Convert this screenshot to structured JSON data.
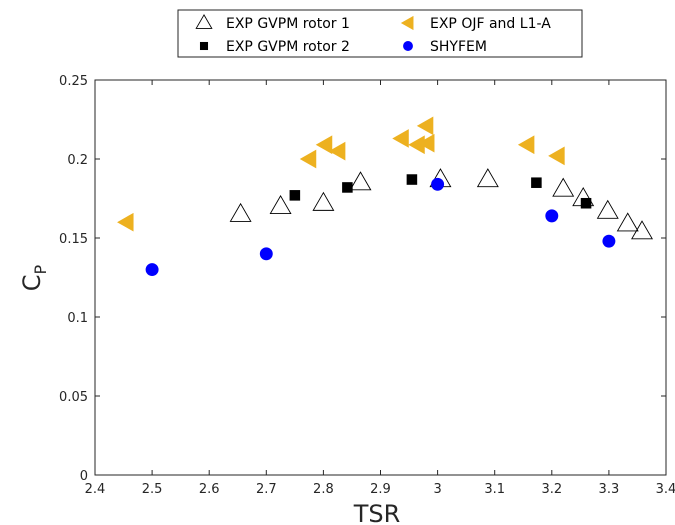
{
  "chart_data": {
    "type": "scatter",
    "xlabel": "TSR",
    "ylabel_main": "C",
    "ylabel_sub": "P",
    "xlim": [
      2.4,
      3.4
    ],
    "ylim": [
      0,
      0.25
    ],
    "xticks": [
      "2.4",
      "2.5",
      "2.6",
      "2.7",
      "2.8",
      "2.9",
      "3",
      "3.1",
      "3.2",
      "3.3",
      "3.4"
    ],
    "yticks": [
      "0",
      "0.05",
      "0.1",
      "0.15",
      "0.2",
      "0.25"
    ],
    "grid": false,
    "legend_position": "top",
    "series": [
      {
        "name": "EXP GVPM rotor 1",
        "marker": "triangle-up-open",
        "color": "#000000",
        "points": [
          [
            2.655,
            0.165
          ],
          [
            2.725,
            0.17
          ],
          [
            2.8,
            0.172
          ],
          [
            2.865,
            0.185
          ],
          [
            3.005,
            0.187
          ],
          [
            3.088,
            0.187
          ],
          [
            3.22,
            0.181
          ],
          [
            3.255,
            0.175
          ],
          [
            3.298,
            0.167
          ],
          [
            3.333,
            0.159
          ],
          [
            3.358,
            0.154
          ]
        ]
      },
      {
        "name": "EXP GVPM rotor 2",
        "marker": "square-filled",
        "color": "#000000",
        "points": [
          [
            2.75,
            0.177
          ],
          [
            2.842,
            0.182
          ],
          [
            2.955,
            0.187
          ],
          [
            3.173,
            0.185
          ],
          [
            3.26,
            0.172
          ]
        ]
      },
      {
        "name": "EXP OJF and L1-A",
        "marker": "triangle-left-filled",
        "color": "#EDB120",
        "points": [
          [
            2.455,
            0.16
          ],
          [
            2.775,
            0.2
          ],
          [
            2.803,
            0.209
          ],
          [
            2.826,
            0.205
          ],
          [
            2.937,
            0.213
          ],
          [
            2.965,
            0.209
          ],
          [
            2.982,
            0.21
          ],
          [
            2.98,
            0.221
          ],
          [
            3.157,
            0.209
          ],
          [
            3.21,
            0.202
          ]
        ]
      },
      {
        "name": "SHYFEM",
        "marker": "circle-filled",
        "color": "#0000FF",
        "points": [
          [
            2.5,
            0.13
          ],
          [
            2.7,
            0.14
          ],
          [
            3.0,
            0.184
          ],
          [
            3.2,
            0.164
          ],
          [
            3.3,
            0.148
          ]
        ]
      }
    ]
  }
}
